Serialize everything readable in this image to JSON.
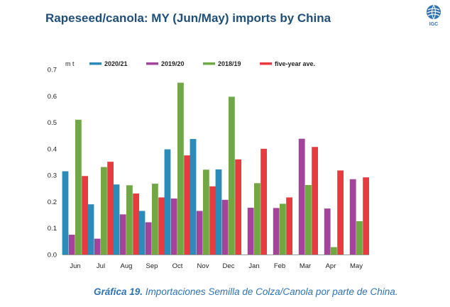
{
  "header": {
    "title": "Rapeseed/canola: MY (Jun/May) imports by China",
    "logo_text": "IGC"
  },
  "caption": {
    "prefix": "Gráfica 19.",
    "text": "Importaciones Semilla de Colza/Canola por parte de China."
  },
  "colors": {
    "title": "#1f4e79",
    "caption": "#2e74b5",
    "series": [
      "#2b8cba",
      "#a2449a",
      "#70a844",
      "#e83b3f"
    ]
  },
  "chart_data": {
    "type": "bar",
    "unit": "m t",
    "categories": [
      "Jun",
      "Jul",
      "Aug",
      "Sep",
      "Oct",
      "Nov",
      "Dec",
      "Jan",
      "Feb",
      "Mar",
      "Apr",
      "May"
    ],
    "ylim": [
      0,
      0.7
    ],
    "yticks": [
      "0.0",
      "0.1",
      "0.2",
      "0.3",
      "0.4",
      "0.5",
      "0.6",
      "0.7"
    ],
    "legend_position": "top",
    "grid": false,
    "series": [
      {
        "name": "2020/21",
        "values": [
          0.315,
          0.19,
          0.265,
          0.165,
          0.398,
          0.437,
          0.322,
          null,
          null,
          null,
          null,
          null
        ]
      },
      {
        "name": "2019/20",
        "values": [
          0.075,
          0.06,
          0.152,
          0.122,
          0.212,
          0.165,
          0.207,
          0.177,
          0.176,
          0.438,
          0.174,
          0.285
        ]
      },
      {
        "name": "2018/19",
        "values": [
          0.51,
          0.331,
          0.262,
          0.268,
          0.65,
          0.321,
          0.597,
          0.27,
          0.192,
          0.263,
          0.028,
          0.126
        ]
      },
      {
        "name": "five-year ave.",
        "values": [
          0.297,
          0.351,
          0.231,
          0.216,
          0.375,
          0.258,
          0.36,
          0.4,
          0.216,
          0.407,
          0.318,
          0.292
        ]
      }
    ]
  }
}
